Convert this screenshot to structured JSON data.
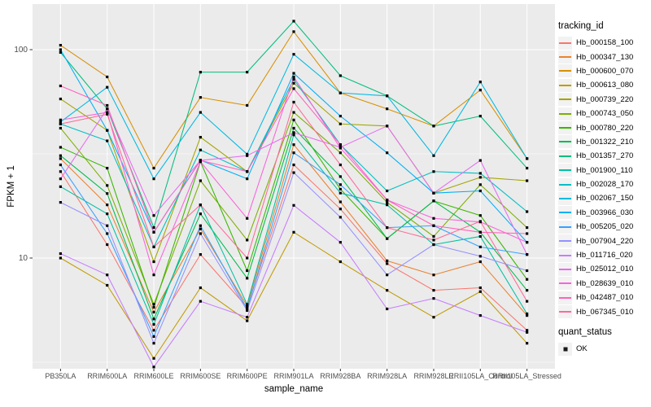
{
  "figure": {
    "background": "#FFFFFF",
    "panel_background": "#EBEBEB",
    "gridline_color": "#FFFFFF",
    "axis_text_color": "#4D4D4D",
    "tick_mark_color": "#333333",
    "point_color": "#000000"
  },
  "legend": {
    "tracking_title": "tracking_id",
    "quant_title": "quant_status",
    "quant_items": [
      {
        "label": "OK"
      }
    ]
  },
  "chart_data": {
    "type": "line",
    "title": "",
    "xlabel": "sample_name",
    "ylabel": "FPKM + 1",
    "y_scale": "log10",
    "y_ticks": [
      100,
      10
    ],
    "y_minor_ticks": [
      31.62,
      3.162
    ],
    "ylim": [
      2.8,
      170
    ],
    "grid": true,
    "legend_position": "right",
    "point_shape": "filled-square",
    "categories": [
      "PB350LA",
      "RRIM600LA",
      "RRIM600LE",
      "RRIM600SE",
      "RRIM600PE",
      "RRIM901LA",
      "RRIM928BA",
      "RRIM928LA",
      "RRIM928LE",
      "RRII105LA_Control",
      "RRII105LA_Stressed"
    ],
    "series": [
      {
        "name": "Hb_000158_100",
        "color": "#F8766D",
        "values": [
          26,
          11.6,
          4.5,
          10.4,
          5.8,
          28,
          17.2,
          9.4,
          7.0,
          7.2,
          4.5
        ]
      },
      {
        "name": "Hb_000347_130",
        "color": "#EA8331",
        "values": [
          30,
          18,
          5.5,
          13.8,
          5.9,
          35,
          18.6,
          9.7,
          8.3,
          9.6,
          5.3
        ]
      },
      {
        "name": "Hb_000600_070",
        "color": "#D89000",
        "values": [
          105,
          74,
          27,
          59,
          54,
          122,
          62,
          52,
          43,
          64,
          30
        ]
      },
      {
        "name": "Hb_000613_080",
        "color": "#C09B00",
        "values": [
          10,
          7.4,
          3.3,
          7.2,
          5.0,
          13.3,
          9.6,
          7.0,
          5.2,
          6.9,
          3.9
        ]
      },
      {
        "name": "Hb_000739_220",
        "color": "#A3A500",
        "values": [
          58,
          41,
          9.6,
          38,
          26,
          69,
          44,
          43,
          20.5,
          24.4,
          23.5
        ]
      },
      {
        "name": "Hb_000743_050",
        "color": "#7CAE00",
        "values": [
          42,
          22.3,
          6.0,
          23.5,
          12.2,
          50,
          32,
          18.5,
          12.7,
          22.5,
          14
        ]
      },
      {
        "name": "Hb_000780_220",
        "color": "#39B600",
        "values": [
          34,
          27,
          5.8,
          29,
          8.7,
          46,
          21.4,
          12.4,
          18.8,
          16,
          7.9
        ]
      },
      {
        "name": "Hb_001322_210",
        "color": "#00BB4E",
        "values": [
          31,
          20.4,
          5.1,
          16.3,
          8.0,
          42,
          24.6,
          12.4,
          18.8,
          13.3,
          7.0
        ]
      },
      {
        "name": "Hb_001357_270",
        "color": "#00BF7D",
        "values": [
          97,
          52,
          14,
          78,
          78,
          137,
          75,
          60,
          43,
          48,
          27
        ]
      },
      {
        "name": "Hb_001900_110",
        "color": "#00C1A3",
        "values": [
          22,
          16.3,
          4.8,
          18,
          6.0,
          39,
          20.5,
          18,
          11.6,
          12.7,
          5.4
        ]
      },
      {
        "name": "Hb_002028_170",
        "color": "#00BFC4",
        "values": [
          44,
          36.5,
          11.3,
          33,
          26,
          72,
          35,
          21,
          26,
          25.5,
          16.7
        ]
      },
      {
        "name": "Hb_002067_150",
        "color": "#00BAE0",
        "values": [
          45,
          66,
          24,
          50,
          31.5,
          95,
          62,
          60,
          31,
          70,
          30
        ]
      },
      {
        "name": "Hb_003966_030",
        "color": "#00B0F6",
        "values": [
          100,
          41,
          13.3,
          29.5,
          24,
          77,
          48,
          32,
          20.5,
          21,
          11.9
        ]
      },
      {
        "name": "Hb_005205_020",
        "color": "#35A2FF",
        "values": [
          28,
          13.1,
          4.2,
          14.3,
          5.7,
          32,
          22.5,
          14,
          14.3,
          11.3,
          10.4
        ]
      },
      {
        "name": "Hb_007904_220",
        "color": "#9590FF",
        "values": [
          18.5,
          14.3,
          3.9,
          13.1,
          5.6,
          25.7,
          15.7,
          8.3,
          11.6,
          10.2,
          8.7
        ]
      },
      {
        "name": "Hb_011716_020",
        "color": "#C77CFF",
        "values": [
          10.5,
          8.3,
          3.0,
          6.2,
          5.2,
          17.9,
          11.9,
          5.7,
          6.4,
          5.3,
          4.4
        ]
      },
      {
        "name": "Hb_025012_010",
        "color": "#E76BF3",
        "values": [
          24,
          52,
          16,
          29.4,
          31,
          40,
          34,
          43,
          20.5,
          29.4,
          10.4
        ]
      },
      {
        "name": "Hb_028639_010",
        "color": "#FA62DB",
        "values": [
          46,
          50,
          8.3,
          29,
          15.5,
          74,
          33.7,
          19,
          15.5,
          14.9,
          11.9
        ]
      },
      {
        "name": "Hb_042487_010",
        "color": "#FF62BC",
        "values": [
          67,
          54,
          13.3,
          29.4,
          26,
          65,
          35,
          19,
          14.3,
          13.3,
          13.1
        ]
      },
      {
        "name": "Hb_067345_010",
        "color": "#FF6A98",
        "values": [
          44,
          49,
          11.3,
          18,
          10,
          56,
          28,
          14,
          12.2,
          15,
          6.2
        ]
      }
    ]
  }
}
